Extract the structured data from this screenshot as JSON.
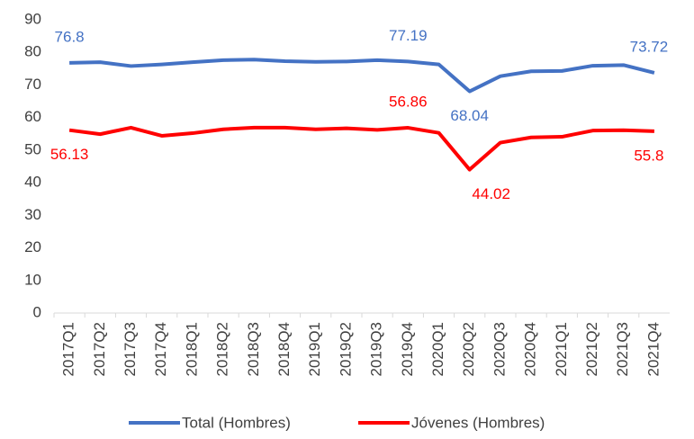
{
  "chart_data": {
    "type": "line",
    "categories": [
      "2017Q1",
      "2017Q2",
      "2017Q3",
      "2017Q4",
      "2018Q1",
      "2018Q2",
      "2018Q3",
      "2018Q4",
      "2019Q1",
      "2019Q2",
      "2019Q3",
      "2019Q4",
      "2020Q1",
      "2020Q2",
      "2020Q3",
      "2020Q4",
      "2021Q1",
      "2021Q2",
      "2021Q3",
      "2021Q4"
    ],
    "series": [
      {
        "name": "Total (Hombres)",
        "color": "#4472c4",
        "values": [
          76.8,
          77.0,
          75.8,
          76.3,
          77.0,
          77.6,
          77.8,
          77.3,
          77.1,
          77.2,
          77.6,
          77.19,
          76.3,
          68.04,
          72.7,
          74.2,
          74.3,
          75.9,
          76.1,
          73.72
        ],
        "value_labels": [
          "76.8",
          null,
          null,
          null,
          null,
          null,
          null,
          null,
          null,
          null,
          null,
          "77.19",
          null,
          "68.04",
          null,
          null,
          null,
          null,
          null,
          "73.72"
        ]
      },
      {
        "name": "Jóvenes (Hombres)",
        "color": "#ff0000",
        "values": [
          56.13,
          54.9,
          56.9,
          54.4,
          55.2,
          56.4,
          56.9,
          56.9,
          56.4,
          56.7,
          56.2,
          56.86,
          55.3,
          44.02,
          52.3,
          53.9,
          54.1,
          56.0,
          56.1,
          55.8
        ],
        "value_labels": [
          "56.13",
          null,
          null,
          null,
          null,
          null,
          null,
          null,
          null,
          null,
          null,
          "56.86",
          null,
          "44.02",
          null,
          null,
          null,
          null,
          null,
          "55.8"
        ]
      }
    ],
    "ylim": [
      0,
      90
    ],
    "yticks": [
      0,
      10,
      20,
      30,
      40,
      50,
      60,
      70,
      80,
      90
    ],
    "grid": false,
    "legend": "bottom"
  }
}
